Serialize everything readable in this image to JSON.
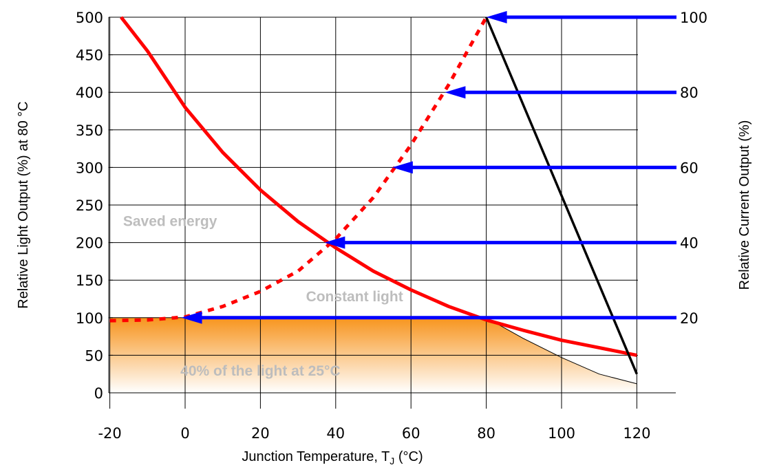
{
  "chart_data": {
    "type": "line",
    "xlabel": "Junction Temperature, T",
    "xlabel_sub": "J",
    "xlabel_suffix": " (°C)",
    "ylabel": "Relative Light Output (%) at 80 °C",
    "y2label": "Relative Current Output (%)",
    "xlim": [
      -20,
      130
    ],
    "ylim": [
      0,
      500
    ],
    "y2lim": [
      0,
      100
    ],
    "x_ticks": [
      "-20",
      "0",
      "20",
      "40",
      "60",
      "80",
      "100",
      "120"
    ],
    "y_ticks": [
      "0",
      "50",
      "100",
      "150",
      "200",
      "250",
      "300",
      "350",
      "400",
      "450",
      "500"
    ],
    "y2_ticks": [
      "20",
      "40",
      "60",
      "80",
      "100"
    ],
    "grid": true,
    "colors": {
      "light_curve": "#ff0000",
      "current_arrows": "#0000ff",
      "derating_line": "#000000",
      "fill_top": "#f7941d",
      "fill_bottom": "#ffffff",
      "region_text": "#bdbdbd"
    },
    "series": [
      {
        "style": "solid",
        "points": [
          [
            -17,
            500
          ],
          [
            -10,
            455
          ],
          [
            0,
            380
          ],
          [
            10,
            320
          ],
          [
            20,
            270
          ],
          [
            30,
            228
          ],
          [
            40,
            193
          ],
          [
            50,
            162
          ],
          [
            60,
            137
          ],
          [
            70,
            115
          ],
          [
            80,
            97
          ],
          [
            90,
            83
          ],
          [
            100,
            70
          ],
          [
            110,
            60
          ],
          [
            120,
            50
          ]
        ]
      },
      {
        "style": "dashed",
        "points": [
          [
            -20,
            96
          ],
          [
            -10,
            97
          ],
          [
            0,
            101
          ],
          [
            10,
            115
          ],
          [
            20,
            135
          ],
          [
            30,
            162
          ],
          [
            40,
            205
          ],
          [
            50,
            260
          ],
          [
            60,
            330
          ],
          [
            70,
            410
          ],
          [
            80,
            500
          ]
        ]
      },
      {
        "style": "solid",
        "points": [
          [
            80,
            500
          ],
          [
            120,
            25
          ]
        ]
      }
    ],
    "area": {
      "points": [
        [
          -20,
          100
        ],
        [
          80,
          100
        ],
        [
          90,
          72
        ],
        [
          100,
          47
        ],
        [
          110,
          25
        ],
        [
          120,
          12
        ],
        [
          120,
          0
        ],
        [
          -20,
          0
        ]
      ]
    },
    "arrows": [
      {
        "current": 100,
        "light": 500,
        "x_tip": 80
      },
      {
        "current": 80,
        "light": 400,
        "x_tip": 69
      },
      {
        "current": 60,
        "light": 300,
        "x_tip": 55
      },
      {
        "current": 40,
        "light": 200,
        "x_tip": 37
      },
      {
        "current": 20,
        "light": 100,
        "x_tip": -1
      }
    ],
    "annotations": [
      {
        "text": "Saved energy",
        "x": -4,
        "y": 222
      },
      {
        "text": "Constant light",
        "x": 45,
        "y": 122
      },
      {
        "text": "40% of the light at 25°C",
        "x": 20,
        "y": 23
      }
    ]
  }
}
